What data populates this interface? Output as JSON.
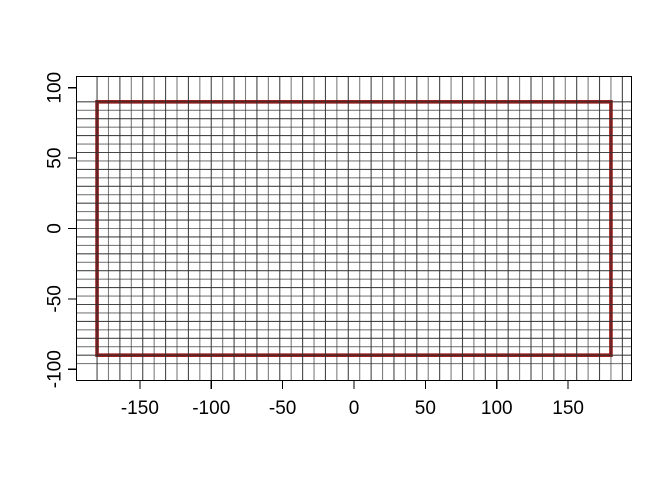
{
  "chart_data": {
    "type": "line",
    "title": "",
    "xlabel": "",
    "ylabel": "",
    "xlim": [
      -194.4,
      194.4
    ],
    "ylim": [
      -108,
      108
    ],
    "grid_on": true,
    "legend": "none",
    "x_axis": {
      "tick_values": [
        -150,
        -100,
        -50,
        0,
        50,
        100,
        150
      ],
      "tick_labels": [
        "-150",
        "-100",
        "-50",
        "0",
        "50",
        "100",
        "150"
      ]
    },
    "y_axis": {
      "tick_values": [
        100,
        50,
        0,
        -50,
        -100
      ],
      "tick_labels": [
        "100",
        "50",
        "0",
        "-50",
        "-100"
      ]
    },
    "graticule": {
      "v_start_deg": -180,
      "v_step_deg": 8,
      "v_line_count": 47,
      "h_start_deg": 90,
      "h_step_deg": -6,
      "h_line_count": 32,
      "color": "#2e2e2e"
    },
    "world_extent_rect": {
      "x_min": -180,
      "x_max": 180,
      "y_min": -90,
      "y_max": 90,
      "color": "#9B1B1B",
      "line_width": 3.6
    },
    "colors": {
      "background": "#ffffff",
      "box": "#000000",
      "tick": "#000000",
      "label": "#000000"
    },
    "label_font_px": 19
  }
}
